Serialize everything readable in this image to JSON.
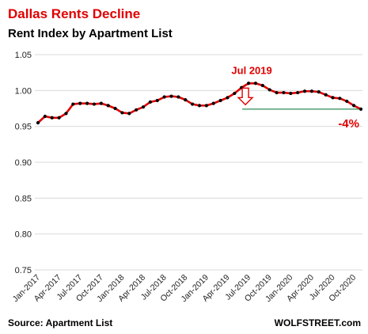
{
  "chart_data": {
    "type": "line",
    "title": "Dallas Rents Decline",
    "subtitle": "Rent Index by Apartment List",
    "source": "Source: Apartment List",
    "brand": "WOLFSTREET.com",
    "ylim": [
      0.75,
      1.05
    ],
    "yticks": [
      "0.75",
      "0.80",
      "0.85",
      "0.90",
      "0.95",
      "1.00",
      "1.05"
    ],
    "ytick_values": [
      0.75,
      0.8,
      0.85,
      0.9,
      0.95,
      1.0,
      1.05
    ],
    "xtick_labels": [
      "Jan-2017",
      "Apr-2017",
      "Jul-2017",
      "Oct-2017",
      "Jan-2018",
      "Apr-2018",
      "Jul-2018",
      "Oct-2018",
      "Jan-2019",
      "Apr-2019",
      "Jul-2019",
      "Oct-2019",
      "Jan-2020",
      "Apr-2020",
      "Jul-2020",
      "Oct-2020"
    ],
    "series": [
      {
        "values": [
          0.955,
          0.964,
          0.962,
          0.962,
          0.968,
          0.981,
          0.982,
          0.982,
          0.981,
          0.982,
          0.979,
          0.975,
          0.969,
          0.968,
          0.973,
          0.977,
          0.984,
          0.986,
          0.991,
          0.992,
          0.991,
          0.987,
          0.981,
          0.979,
          0.979,
          0.982,
          0.986,
          0.99,
          0.996,
          1.004,
          1.01,
          1.01,
          1.007,
          1.001,
          0.997,
          0.997,
          0.996,
          0.997,
          0.999,
          0.999,
          0.998,
          0.994,
          0.99,
          0.989,
          0.985,
          0.979,
          0.974
        ]
      }
    ],
    "peak_annotation": "Jul 2019",
    "peak_index": 30,
    "change_annotation": "-4%",
    "colors": {
      "line": "#e00000",
      "marker": "#000000",
      "title": "#e00000",
      "annotation": "#e00000",
      "reference_line": "#2e8b57",
      "grid": "#d9d9d9"
    },
    "grid": true
  }
}
